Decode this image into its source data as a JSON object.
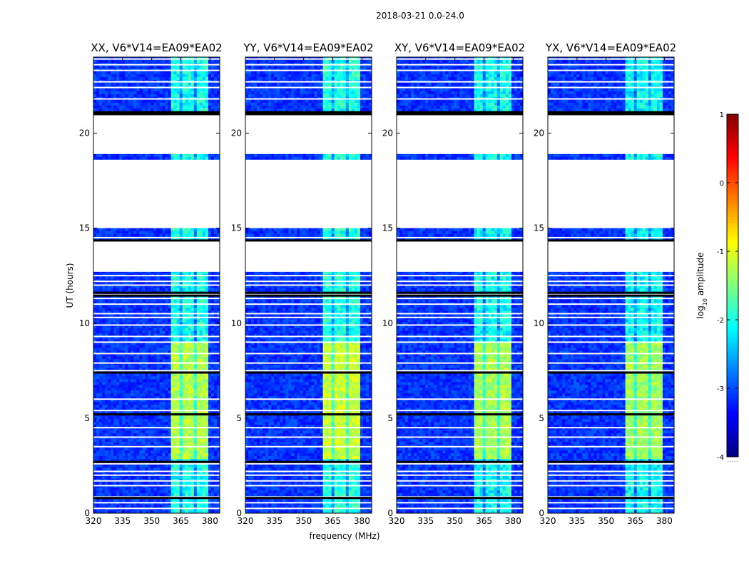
{
  "chart_data": {
    "type": "heatmap",
    "suptitle": "2018-03-21 0.0-24.0",
    "xlabel": "frequency (MHz)",
    "ylabel": "UT (hours)",
    "xlim": [
      320,
      385
    ],
    "ylim": [
      0,
      24
    ],
    "xticks": [
      320,
      335,
      350,
      365,
      380
    ],
    "yticks": [
      0,
      5,
      10,
      15,
      20
    ],
    "panels": [
      {
        "title": "XX, V6*V14=EA09*EA02",
        "band_strength": 0.85
      },
      {
        "title": "YY, V6*V14=EA09*EA02",
        "band_strength": 0.95
      },
      {
        "title": "XY, V6*V14=EA09*EA02",
        "band_strength": 0.8
      },
      {
        "title": "YX, V6*V14=EA09*EA02",
        "band_strength": 0.75
      }
    ],
    "rfi_band_mhz": [
      360.5,
      379.5
    ],
    "rfi_strong_hours": [
      2.8,
      9.0
    ],
    "colorbar": {
      "label_prefix": "log",
      "label_sub": "10",
      "label_suffix": " amplitude",
      "ticks": [
        1,
        0,
        -1,
        -2,
        -3,
        -4
      ],
      "range": [
        -4,
        1
      ],
      "min_label": "....."
    },
    "flagged_blocks_hours": [
      [
        12.7,
        14.4
      ],
      [
        15.0,
        18.6
      ],
      [
        18.9,
        20.95
      ]
    ],
    "flagged_lines_hours": [
      0.25,
      0.55,
      0.85,
      1.45,
      1.7,
      2.0,
      2.2,
      2.6,
      3.5,
      4.0,
      4.5,
      5.4,
      6.0,
      7.5,
      7.9,
      8.4,
      9.0,
      9.3,
      9.9,
      10.3,
      10.5,
      11.0,
      11.3,
      11.5,
      12.0,
      12.2,
      12.5,
      14.5,
      21.8,
      22.4,
      22.7,
      23.3,
      23.6,
      23.9
    ],
    "dark_lines_hours": [
      0.8,
      2.7,
      5.2,
      7.4,
      11.45,
      11.6,
      14.35,
      21.0,
      21.1
    ]
  }
}
